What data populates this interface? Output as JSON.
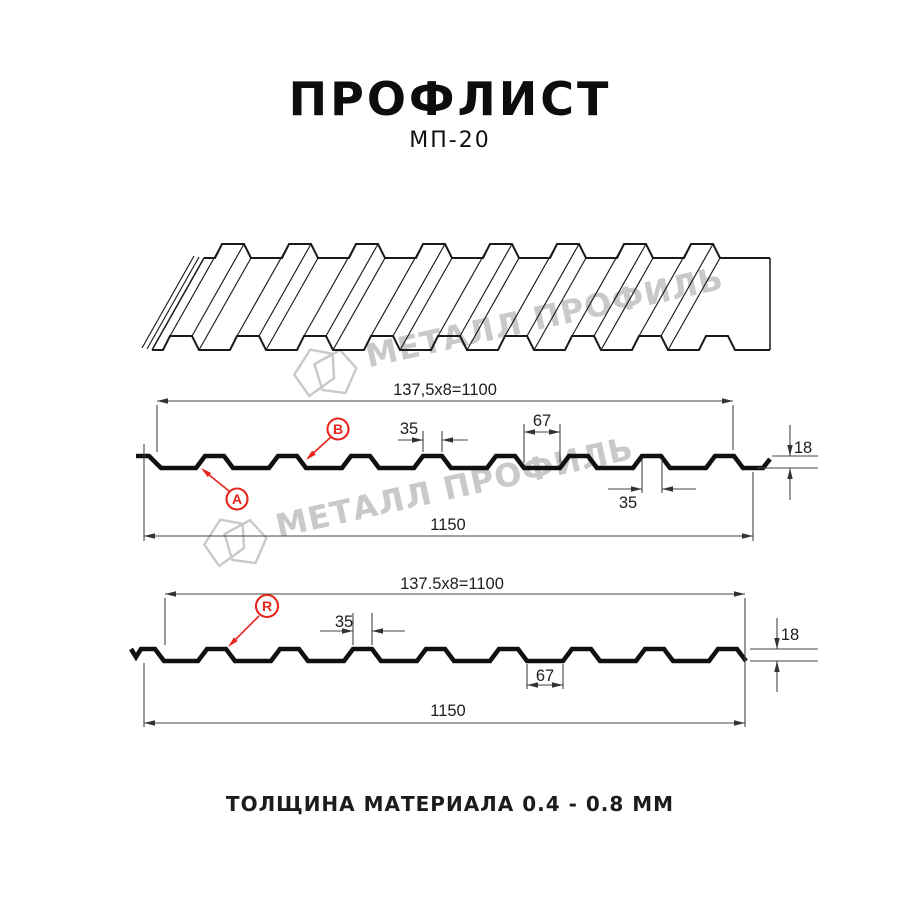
{
  "header": {
    "title": "ПРОФЛИСТ",
    "subtitle": "МП-20"
  },
  "footer": {
    "text": "ТОЛЩИНА МАТЕРИАЛА 0.4 - 0.8 ММ"
  },
  "watermark": {
    "text": "МЕТАЛЛ ПРОФИЛЬ",
    "color": "#c9c9c9"
  },
  "colors": {
    "line": "#101010",
    "dim_line": "#444444",
    "accent_red": "#e6251c"
  },
  "diagram": {
    "side_a": {
      "module_width_label": "137,5x8=1100",
      "overall_width_label": "1150",
      "rib_top_width_label": "35",
      "valley_width_label": "67",
      "height_label": "18",
      "rib_bottom_width_label": "35",
      "callouts": [
        {
          "letter": "A"
        },
        {
          "letter": "B"
        }
      ]
    },
    "side_r": {
      "module_width_label": "137.5x8=1100",
      "overall_width_label": "1150",
      "rib_top_width_label": "35",
      "valley_width_label": "67",
      "height_label": "18",
      "callouts": [
        {
          "letter": "R"
        }
      ]
    }
  }
}
